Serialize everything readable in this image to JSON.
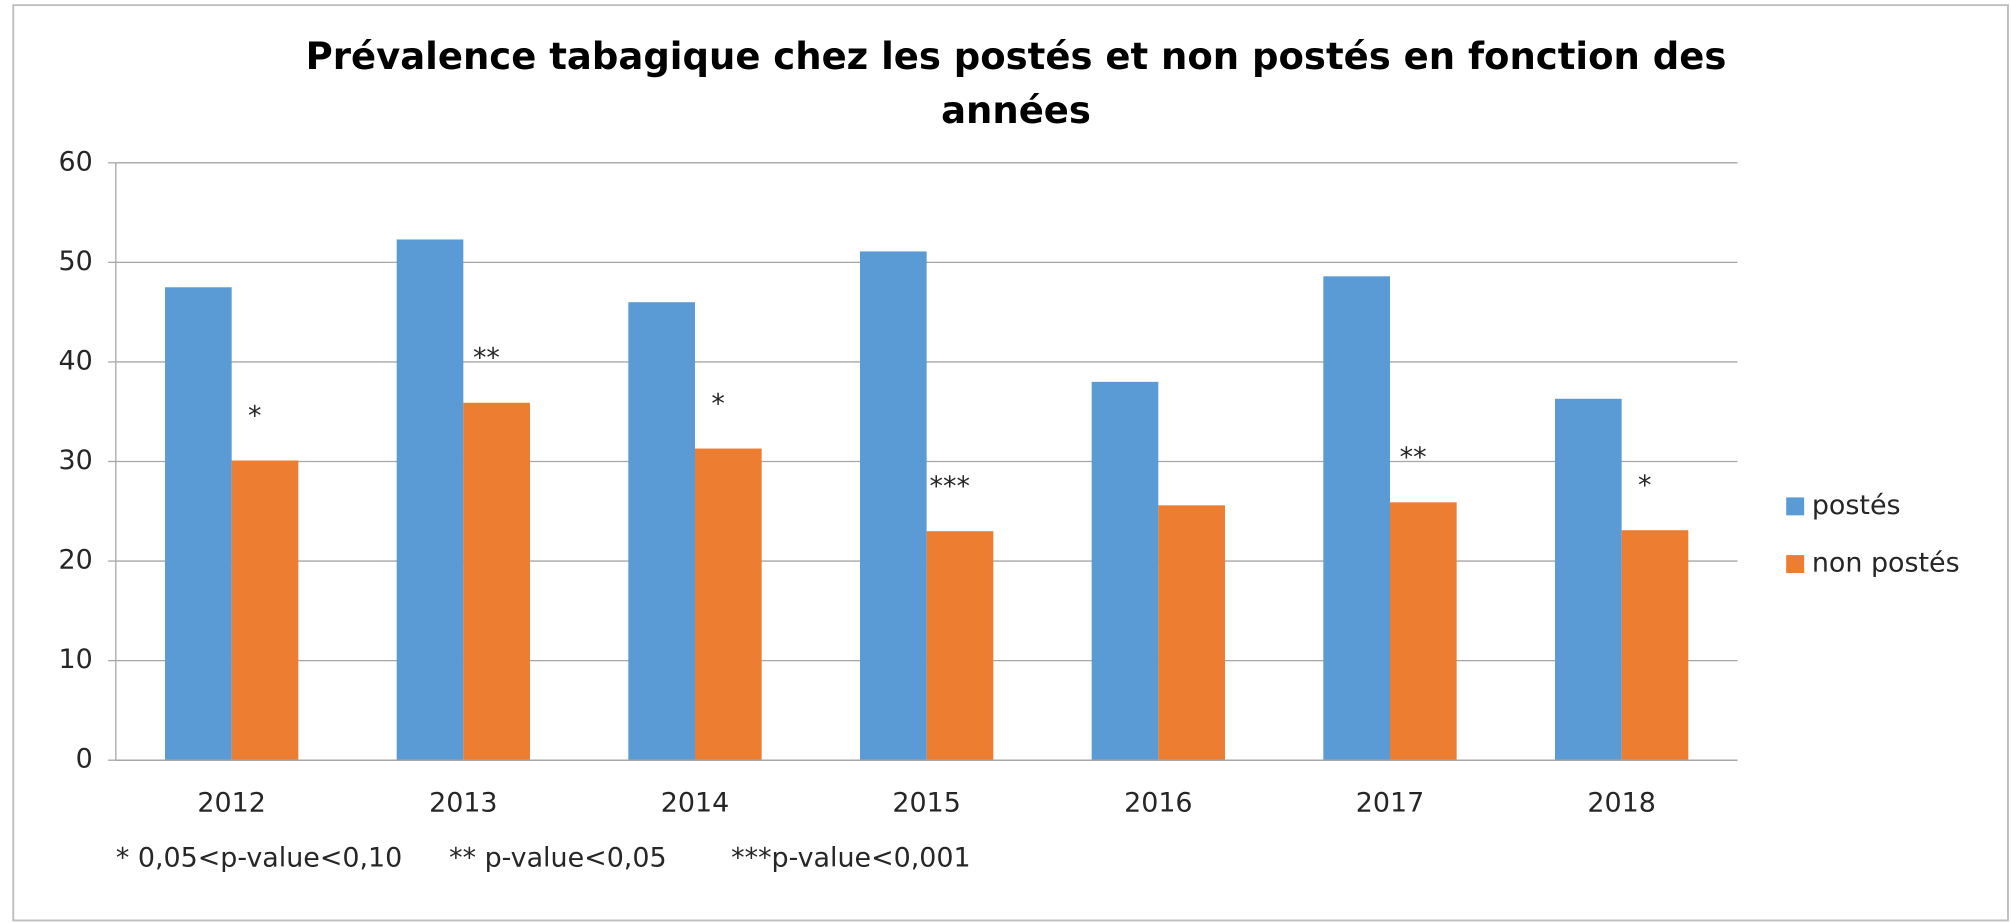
{
  "chart_data": {
    "type": "bar",
    "title": "Prévalence tabagique chez les postés  et non postés en fonction des années",
    "categories": [
      "2012",
      "2013",
      "2014",
      "2015",
      "2016",
      "2017",
      "2018"
    ],
    "series": [
      {
        "name": "postés",
        "color": "#5b9bd5",
        "values": [
          47.5,
          52.3,
          46,
          51.1,
          38,
          48.6,
          36.3
        ]
      },
      {
        "name": "non postés",
        "color": "#ed7d31",
        "values": [
          30.1,
          35.9,
          31.3,
          23,
          25.6,
          25.9,
          23.1
        ]
      }
    ],
    "annotations": [
      "*",
      "**",
      "*",
      "***",
      null,
      "**",
      "*"
    ],
    "footnotes": [
      "* 0,05<p-value<0,10",
      "** p-value<0,05",
      "***p-value<0,001"
    ],
    "ylim": [
      0,
      60
    ],
    "yticks": [
      0,
      10,
      20,
      30,
      40,
      50,
      60
    ],
    "grid": true,
    "legend": "right"
  }
}
